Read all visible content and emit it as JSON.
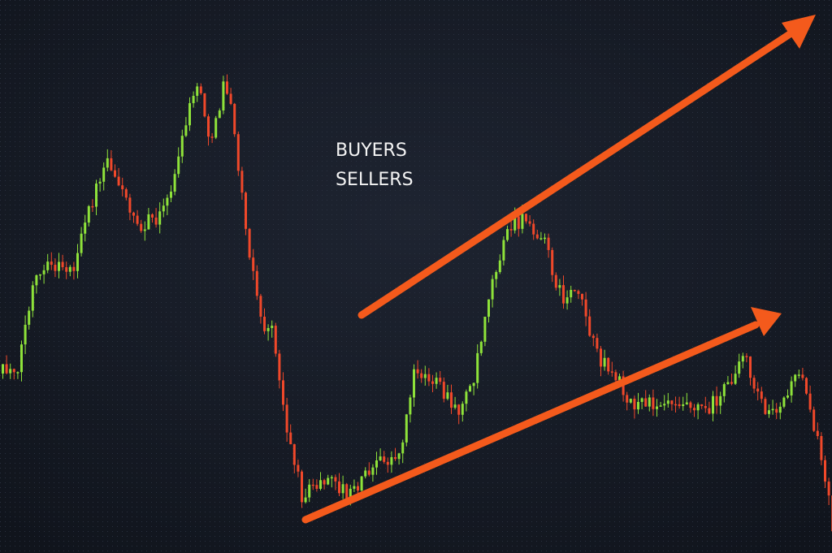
{
  "labels": {
    "buyers": "BUYERS",
    "sellers": "SELLERS"
  }
}
